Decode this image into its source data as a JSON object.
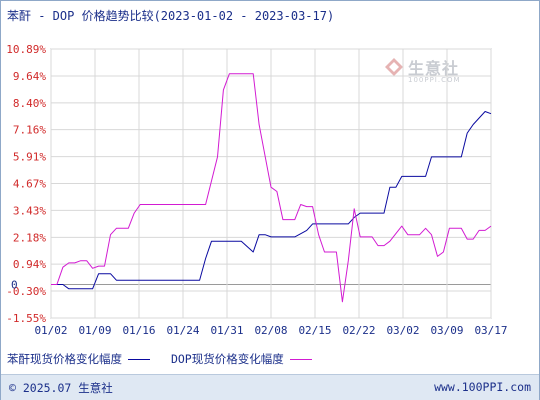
{
  "title": "苯酐 - DOP 价格趋势比较(2023-01-02 - 2023-03-17)",
  "legend": {
    "items": [
      {
        "label": "苯酐现货价格变化幅度",
        "color": "#0a0aa0"
      },
      {
        "label": "DOP现货价格变化幅度",
        "color": "#d21bd2"
      }
    ]
  },
  "watermark": {
    "text": "生意社",
    "sub": "100PPI.COM",
    "color": "#c9ccd2"
  },
  "footer": {
    "left": "© 2025.07 生意社",
    "right": "www.100PPI.com"
  },
  "chart_data": {
    "type": "line",
    "ylim": [
      -1.55,
      10.89
    ],
    "yticks": [
      "10.89%",
      "9.64%",
      "8.40%",
      "7.16%",
      "5.91%",
      "4.67%",
      "3.43%",
      "2.18%",
      "0.94%",
      "-0.30%",
      "-1.55%"
    ],
    "ytick_values": [
      10.89,
      9.64,
      8.4,
      7.16,
      5.91,
      4.67,
      3.43,
      2.18,
      0.94,
      -0.3,
      -1.55
    ],
    "zero_label": "0",
    "xticks": [
      "01/02",
      "01/09",
      "01/16",
      "01/24",
      "01/31",
      "02/08",
      "02/15",
      "02/22",
      "03/02",
      "03/09",
      "03/17"
    ],
    "x_range": [
      "2023-01-02",
      "2023-03-17"
    ],
    "grid": true,
    "series": [
      {
        "name": "苯酐现货价格变化幅度",
        "color": "#0a0aa0",
        "points": [
          [
            "2023-01-02",
            0.0
          ],
          [
            "2023-01-04",
            0.0
          ],
          [
            "2023-01-05",
            -0.2
          ],
          [
            "2023-01-09",
            -0.2
          ],
          [
            "2023-01-10",
            0.5
          ],
          [
            "2023-01-12",
            0.5
          ],
          [
            "2023-01-13",
            0.2
          ],
          [
            "2023-01-27",
            0.2
          ],
          [
            "2023-01-28",
            1.2
          ],
          [
            "2023-01-29",
            2.0
          ],
          [
            "2023-02-03",
            2.0
          ],
          [
            "2023-02-05",
            1.5
          ],
          [
            "2023-02-06",
            2.3
          ],
          [
            "2023-02-07",
            2.3
          ],
          [
            "2023-02-08",
            2.2
          ],
          [
            "2023-02-12",
            2.2
          ],
          [
            "2023-02-14",
            2.5
          ],
          [
            "2023-02-15",
            2.8
          ],
          [
            "2023-02-21",
            2.8
          ],
          [
            "2023-02-22",
            3.1
          ],
          [
            "2023-02-23",
            3.3
          ],
          [
            "2023-02-27",
            3.3
          ],
          [
            "2023-02-28",
            4.5
          ],
          [
            "2023-03-01",
            4.5
          ],
          [
            "2023-03-02",
            5.0
          ],
          [
            "2023-03-06",
            5.0
          ],
          [
            "2023-03-07",
            5.9
          ],
          [
            "2023-03-12",
            5.9
          ],
          [
            "2023-03-13",
            7.0
          ],
          [
            "2023-03-14",
            7.4
          ],
          [
            "2023-03-16",
            8.0
          ],
          [
            "2023-03-17",
            7.9
          ]
        ]
      },
      {
        "name": "DOP现货价格变化幅度",
        "color": "#d21bd2",
        "points": [
          [
            "2023-01-02",
            0.0
          ],
          [
            "2023-01-03",
            0.0
          ],
          [
            "2023-01-04",
            0.8
          ],
          [
            "2023-01-05",
            1.0
          ],
          [
            "2023-01-06",
            1.0
          ],
          [
            "2023-01-07",
            1.1
          ],
          [
            "2023-01-08",
            1.1
          ],
          [
            "2023-01-09",
            0.75
          ],
          [
            "2023-01-10",
            0.85
          ],
          [
            "2023-01-11",
            0.85
          ],
          [
            "2023-01-12",
            2.3
          ],
          [
            "2023-01-13",
            2.6
          ],
          [
            "2023-01-15",
            2.6
          ],
          [
            "2023-01-16",
            3.3
          ],
          [
            "2023-01-17",
            3.7
          ],
          [
            "2023-01-28",
            3.7
          ],
          [
            "2023-01-30",
            5.9
          ],
          [
            "2023-01-31",
            9.0
          ],
          [
            "2023-02-01",
            9.75
          ],
          [
            "2023-02-05",
            9.75
          ],
          [
            "2023-02-06",
            7.4
          ],
          [
            "2023-02-08",
            4.5
          ],
          [
            "2023-02-09",
            4.3
          ],
          [
            "2023-02-10",
            3.0
          ],
          [
            "2023-02-12",
            3.0
          ],
          [
            "2023-02-13",
            3.7
          ],
          [
            "2023-02-14",
            3.6
          ],
          [
            "2023-02-15",
            3.6
          ],
          [
            "2023-02-16",
            2.3
          ],
          [
            "2023-02-17",
            1.5
          ],
          [
            "2023-02-19",
            1.5
          ],
          [
            "2023-02-20",
            -0.8
          ],
          [
            "2023-02-21",
            1.1
          ],
          [
            "2023-02-22",
            3.5
          ],
          [
            "2023-02-23",
            2.2
          ],
          [
            "2023-02-25",
            2.2
          ],
          [
            "2023-02-26",
            1.8
          ],
          [
            "2023-02-27",
            1.8
          ],
          [
            "2023-02-28",
            2.0
          ],
          [
            "2023-03-02",
            2.7
          ],
          [
            "2023-03-03",
            2.3
          ],
          [
            "2023-03-05",
            2.3
          ],
          [
            "2023-03-06",
            2.6
          ],
          [
            "2023-03-07",
            2.3
          ],
          [
            "2023-03-08",
            1.3
          ],
          [
            "2023-03-09",
            1.5
          ],
          [
            "2023-03-10",
            2.6
          ],
          [
            "2023-03-12",
            2.6
          ],
          [
            "2023-03-13",
            2.1
          ],
          [
            "2023-03-14",
            2.1
          ],
          [
            "2023-03-15",
            2.5
          ],
          [
            "2023-03-16",
            2.5
          ],
          [
            "2023-03-17",
            2.7
          ]
        ]
      }
    ]
  }
}
